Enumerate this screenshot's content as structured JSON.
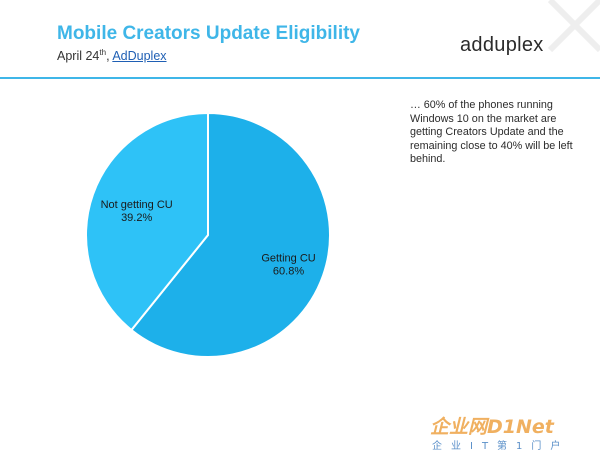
{
  "header": {
    "title": "Mobile Creators Update Eligibility",
    "date": "April 24",
    "date_suffix": "th",
    "separator": ", ",
    "source_link": "AdDuplex",
    "logo_text": "adduplex"
  },
  "note": "… 60% of the phones running Windows 10 on the market are getting Creators Update and the remaining close to 40% will be left behind.",
  "chart_data": {
    "type": "pie",
    "series": [
      {
        "values": [
          60.8,
          39.2
        ],
        "labels": [
          "Getting CU",
          "Not getting CU"
        ],
        "value_labels": [
          "60.8%",
          "39.2%"
        ],
        "colors": [
          "#1db0ea",
          "#2ec2f7"
        ]
      }
    ],
    "slice_border_color": "#ffffff"
  },
  "watermark": {
    "top": "企业网D1Net",
    "bottom": "企业IT第1门户"
  },
  "colors": {
    "accent": "#3fb6e8",
    "text": "#333333",
    "link": "#1f5fb4"
  }
}
